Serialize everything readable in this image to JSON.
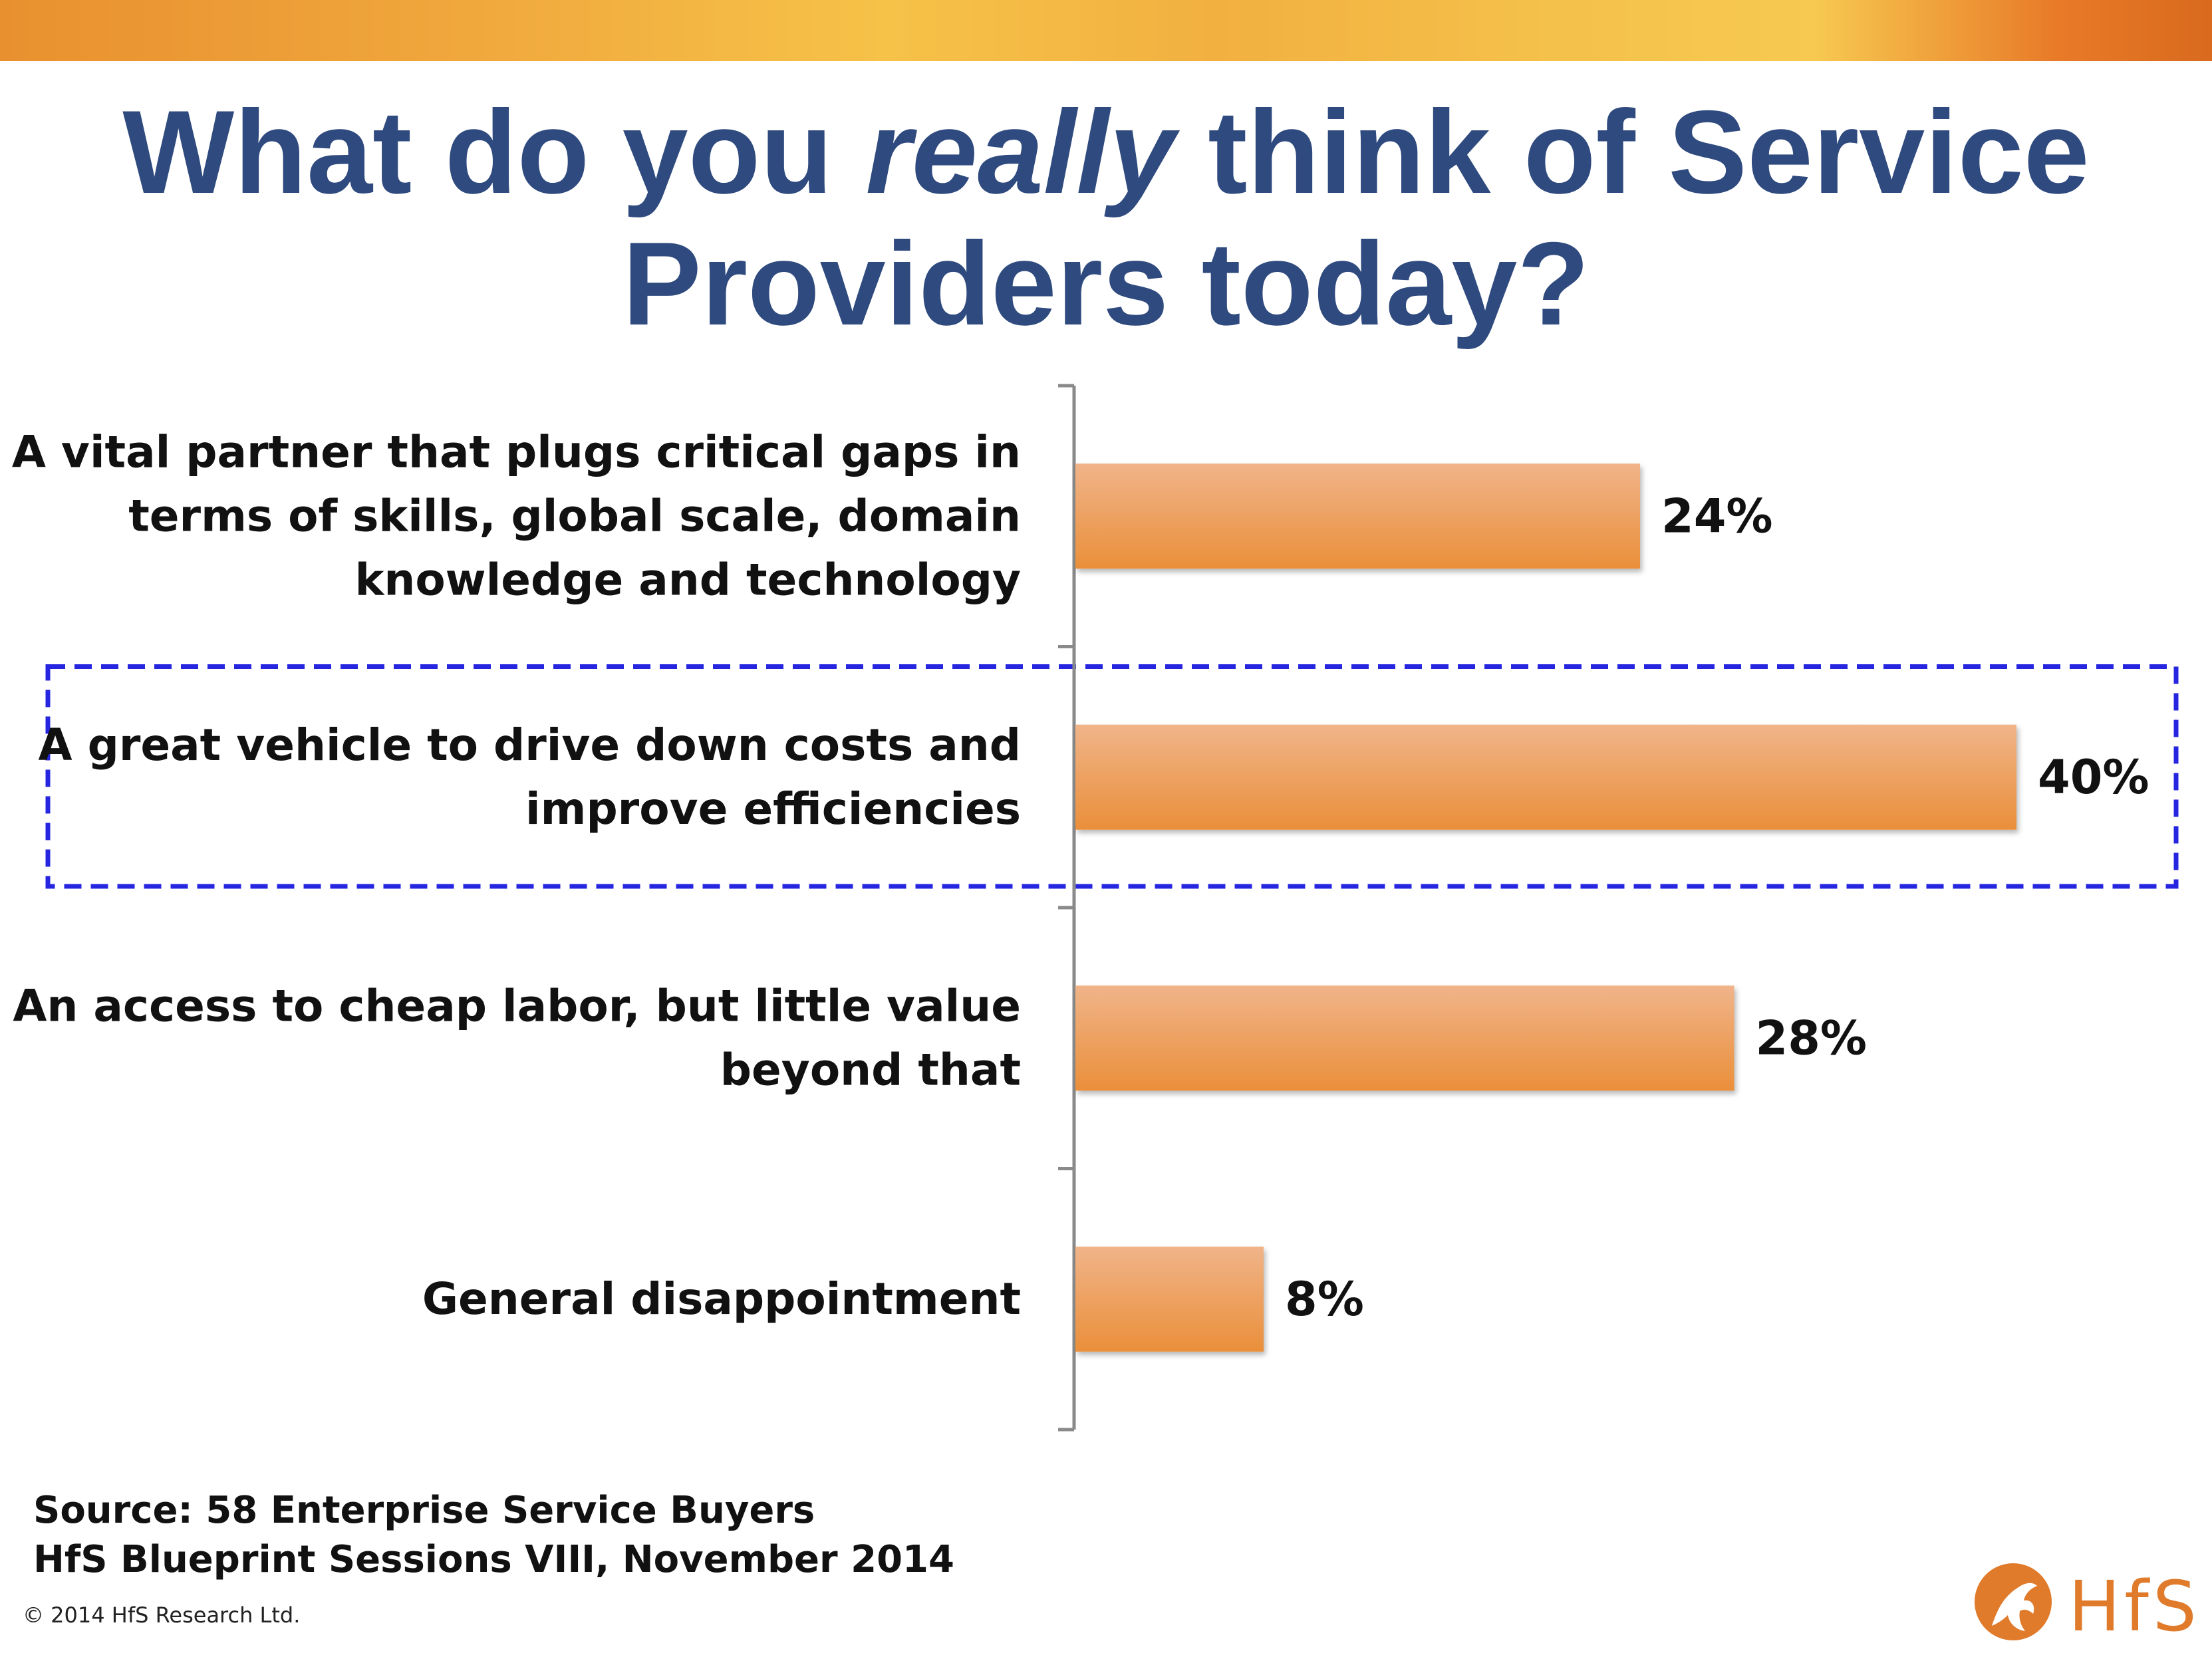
{
  "slide": {
    "title_part1": "What do you ",
    "title_emphasis": "really",
    "title_part2": " think of Service",
    "title_line2": "Providers today?",
    "source_line1": "Source: 58 Enterprise Service Buyers",
    "source_line2": "HfS Blueprint Sessions VIII, November 2014",
    "copyright": "© 2014 HfS Research Ltd.",
    "logo_text": "HfS"
  },
  "colors": {
    "title": "#2f4a7e",
    "bar": "#ea8f3a",
    "bar_top": "#f0b489",
    "highlight_box": "#2626e0"
  },
  "chart_data": {
    "type": "bar",
    "orientation": "horizontal",
    "categories": [
      [
        "A vital partner that plugs critical gaps in",
        "terms of skills, global scale, domain",
        "knowledge and technology"
      ],
      [
        "A great vehicle to drive down costs and",
        "improve efficiencies"
      ],
      [
        "An access to cheap labor, but little value",
        "beyond that"
      ],
      [
        "General disappointment"
      ]
    ],
    "values": [
      24,
      40,
      28,
      8
    ],
    "value_labels": [
      "24%",
      "40%",
      "28%",
      "8%"
    ],
    "unit": "%",
    "xlim": [
      0,
      40
    ],
    "highlighted_category_index": 1,
    "grid": false,
    "legend": "none"
  }
}
